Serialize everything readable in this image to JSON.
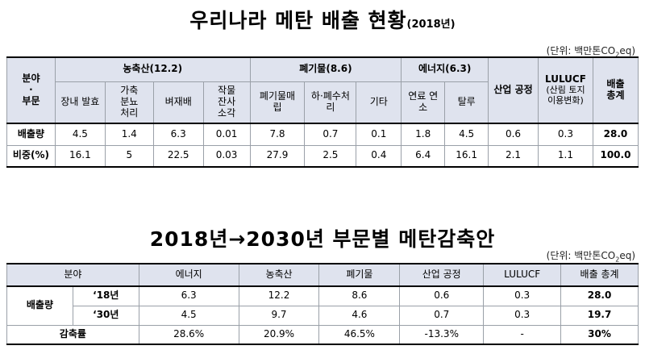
{
  "title1": {
    "main": "우리나라 메탄 배출 현황",
    "year": "(2018년)"
  },
  "unit1": {
    "pre": "(단위: 백만톤CO",
    "sub": "2",
    "post": "eq)"
  },
  "table1": {
    "corner": [
      "분야",
      "·",
      "부문"
    ],
    "groups": {
      "agri": "농축산(12.2)",
      "waste": "폐기물(8.6)",
      "energy": "에너지(6.3)",
      "industry": "산업 공정",
      "lulucf": "LULUCF",
      "total": [
        "배출",
        "총계"
      ]
    },
    "sub": {
      "enteric": "장내 발효",
      "manure": [
        "가축",
        "분뇨",
        "처리"
      ],
      "rice": "벼재배",
      "residue": [
        "작물",
        "잔사",
        "소각"
      ],
      "landfill": [
        "폐기물매",
        "립"
      ],
      "wastewater": [
        "하·폐수처",
        "리"
      ],
      "other": "기타",
      "fuel": [
        "연료 연",
        "소"
      ],
      "fugitive": "탈루",
      "lulucf_note": [
        "(산림 토지",
        "이용변화)"
      ]
    },
    "rows": [
      {
        "label": "배출량",
        "values": [
          "4.5",
          "1.4",
          "6.3",
          "0.01",
          "7.8",
          "0.7",
          "0.1",
          "1.8",
          "4.5",
          "0.6",
          "0.3",
          "28.0"
        ]
      },
      {
        "label": "비중(%)",
        "values": [
          "16.1",
          "5",
          "22.5",
          "0.03",
          "27.9",
          "2.5",
          "0.4",
          "6.4",
          "16.1",
          "2.1",
          "1.1",
          "100.0"
        ]
      }
    ]
  },
  "title2": "2018년→2030년 부문별 메탄감축안",
  "unit2": {
    "pre": "(단위: 백만톤CO",
    "sub": "2",
    "post": "eq)"
  },
  "table2": {
    "headers": [
      "분야",
      "에너지",
      "농축산",
      "폐기물",
      "산업 공정",
      "LULUCF",
      "배출 총계"
    ],
    "emission_label": "배출량",
    "rows": [
      {
        "year": "‘18년",
        "values": [
          "6.3",
          "12.2",
          "8.6",
          "0.6",
          "0.3",
          "28.0"
        ]
      },
      {
        "year": "‘30년",
        "values": [
          "4.5",
          "9.7",
          "4.6",
          "0.7",
          "0.3",
          "19.7"
        ]
      }
    ],
    "reduction": {
      "label": "감축률",
      "values": [
        "28.6%",
        "20.9%",
        "46.5%",
        "-13.3%",
        "-",
        "30%"
      ]
    }
  }
}
